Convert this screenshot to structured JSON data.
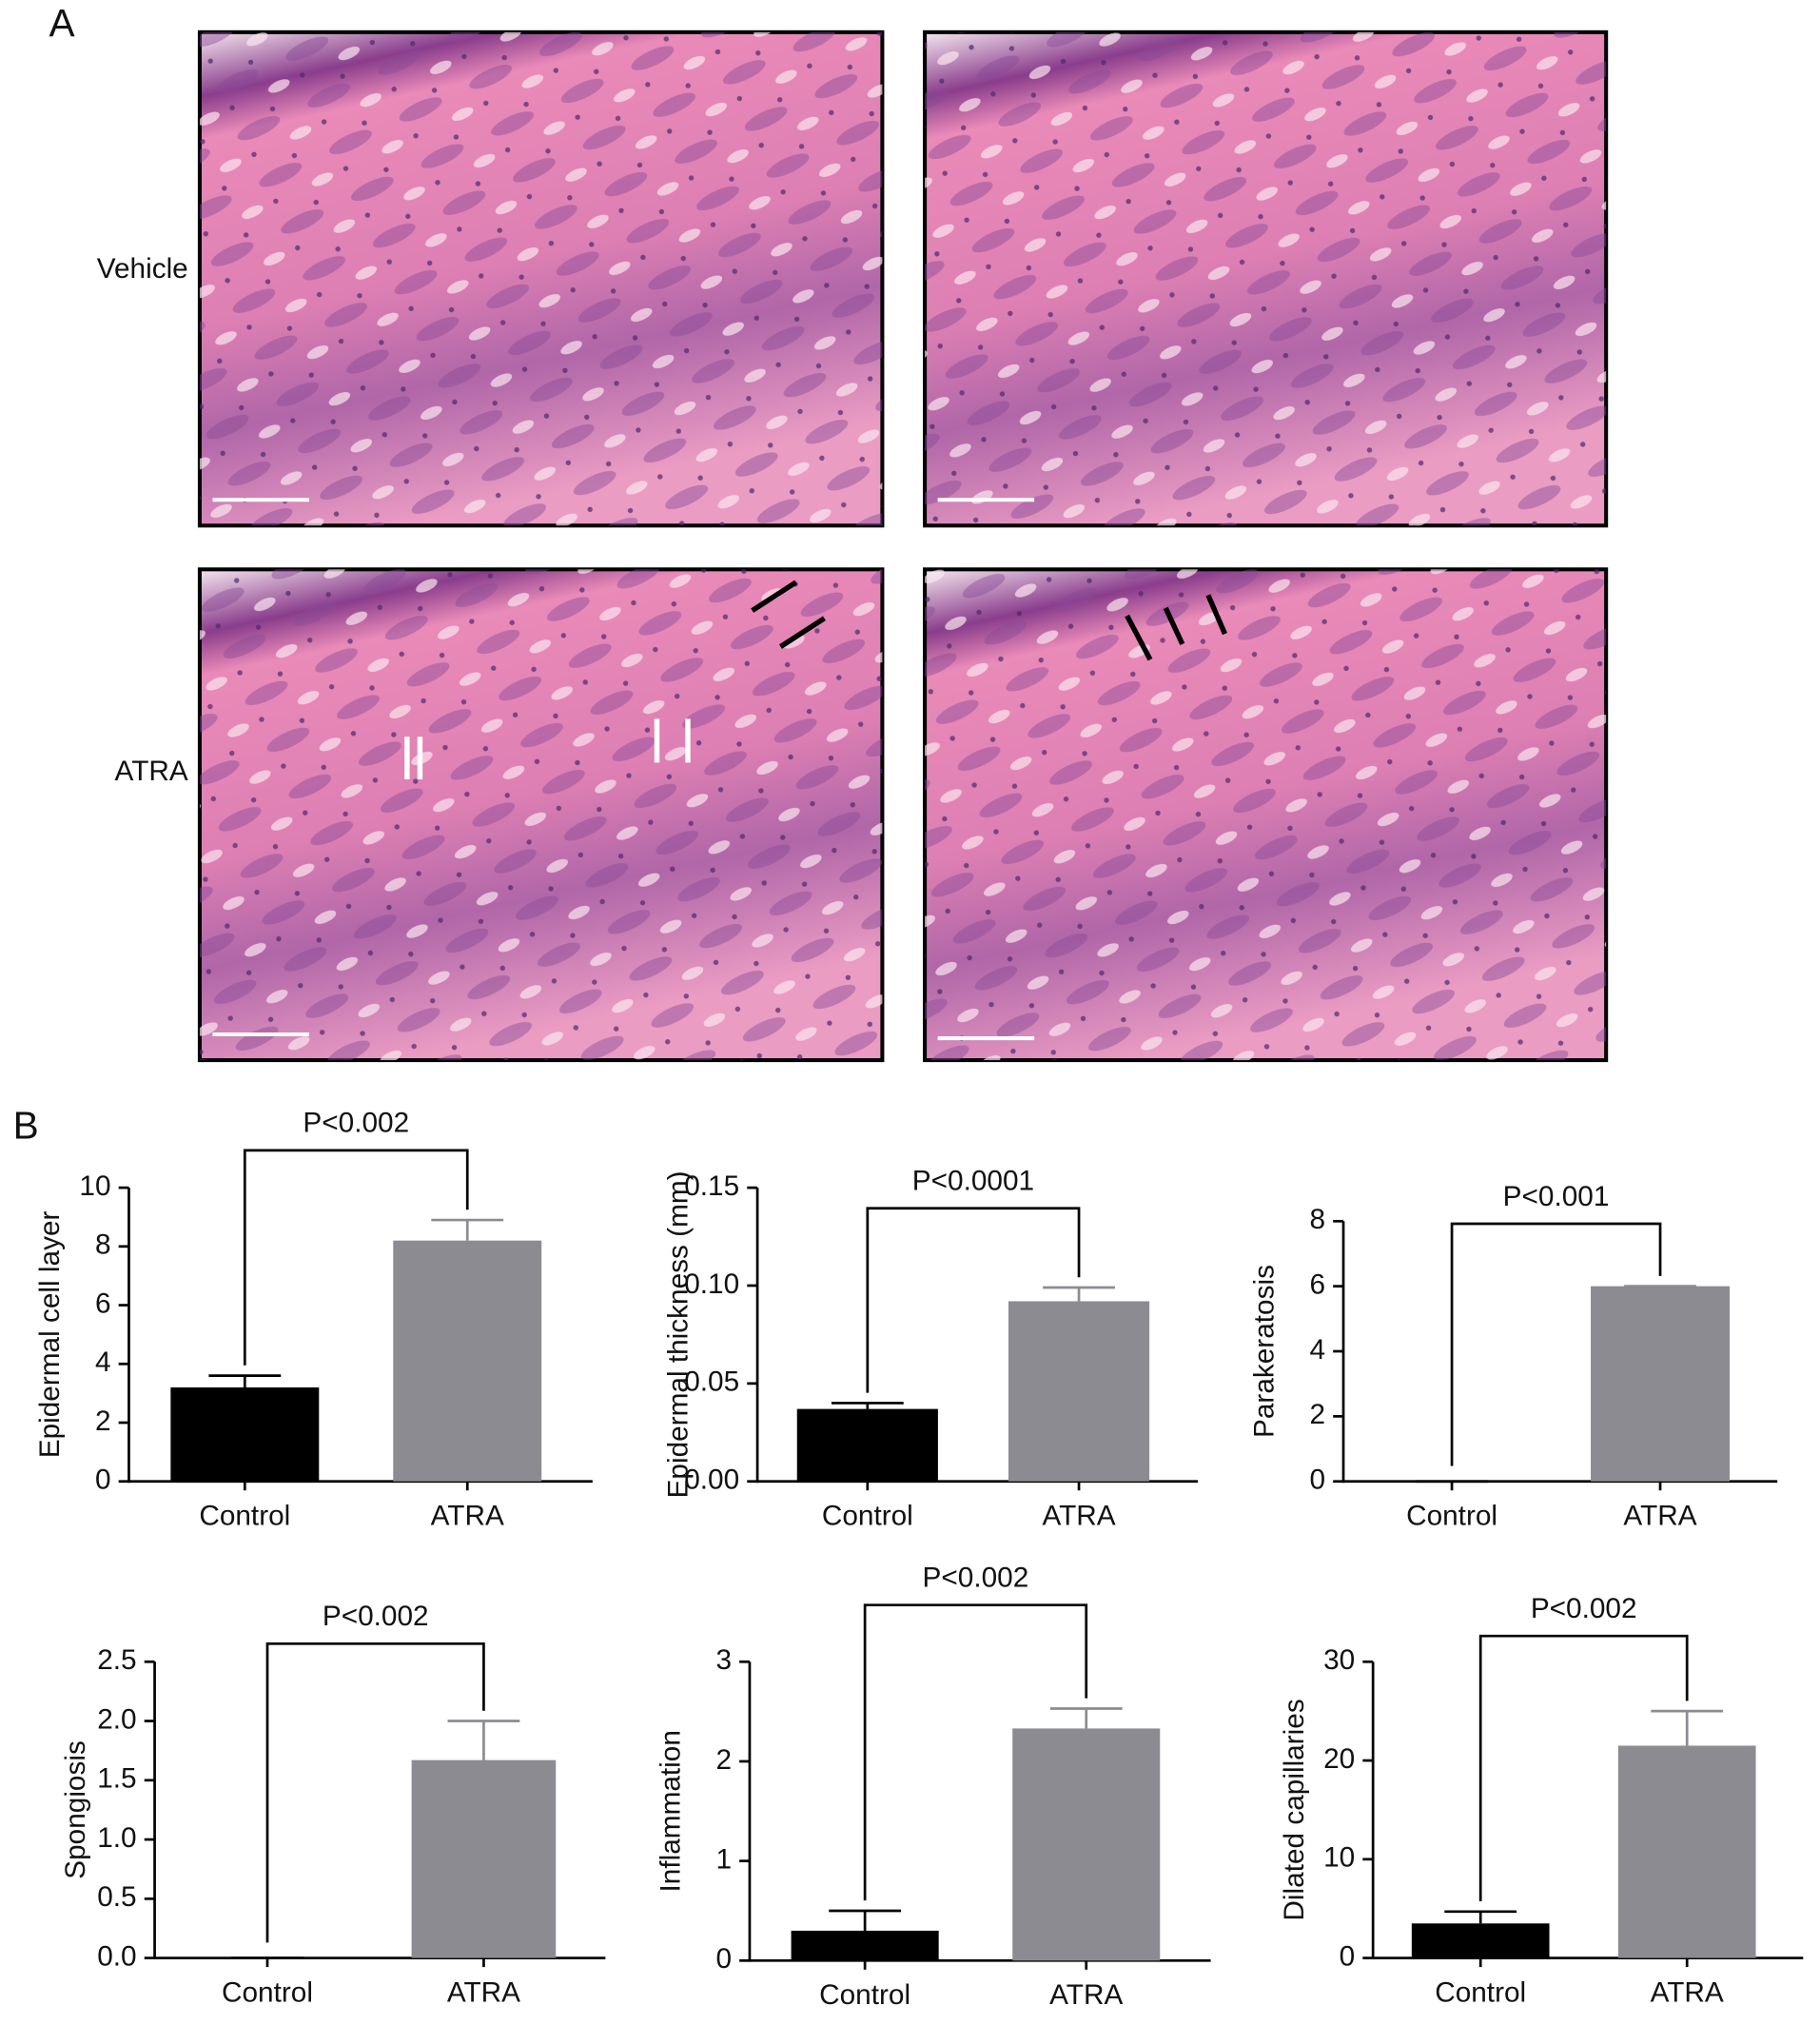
{
  "figure": {
    "panel_a_label": "A",
    "panel_b_label": "B",
    "row_labels": [
      "Vehicle",
      "ATRA"
    ]
  },
  "chart_data": [
    {
      "type": "bar",
      "ylabel": "Epidermal cell layer",
      "annotation": "P<0.002",
      "categories": [
        "Control",
        "ATRA"
      ],
      "values": [
        3.2,
        8.2
      ],
      "errors": [
        0.4,
        0.7
      ],
      "colors": [
        "#000000",
        "#8b8b91"
      ],
      "ylim": [
        0,
        10
      ],
      "yticks": [
        0,
        2,
        4,
        6,
        8,
        10
      ]
    },
    {
      "type": "bar",
      "ylabel": "Epidermal thickness (mm)",
      "annotation": "P<0.0001",
      "categories": [
        "Control",
        "ATRA"
      ],
      "values": [
        0.037,
        0.092
      ],
      "errors": [
        0.003,
        0.007
      ],
      "colors": [
        "#000000",
        "#8b8b91"
      ],
      "ylim": [
        0,
        0.15
      ],
      "yticks": [
        {
          "value": 0,
          "label": "0.00"
        },
        0.05,
        {
          "value": 0.1,
          "label": "0.10"
        },
        0.15
      ]
    },
    {
      "type": "bar",
      "ylabel": "Parakeratosis",
      "annotation": "P<0.001",
      "categories": [
        "Control",
        "ATRA"
      ],
      "values": [
        0,
        6
      ],
      "errors": [
        0,
        0
      ],
      "colors": [
        "#000000",
        "#8b8b91"
      ],
      "ylim": [
        0,
        8
      ],
      "yticks": [
        0,
        2,
        4,
        6,
        8
      ]
    },
    {
      "type": "bar",
      "ylabel": "Spongiosis",
      "annotation": "P<0.002",
      "categories": [
        "Control",
        "ATRA"
      ],
      "values": [
        0,
        1.67
      ],
      "errors": [
        0,
        0.33
      ],
      "colors": [
        "#000000",
        "#8b8b91"
      ],
      "ylim": [
        0,
        2.5
      ],
      "yticks": [
        {
          "value": 0,
          "label": "0.0"
        },
        0.5,
        {
          "value": 1,
          "label": "1.0"
        },
        1.5,
        {
          "value": 2,
          "label": "2.0"
        },
        2.5
      ]
    },
    {
      "type": "bar",
      "ylabel": "Inflammation",
      "annotation": "P<0.002",
      "categories": [
        "Control",
        "ATRA"
      ],
      "values": [
        0.3,
        2.33
      ],
      "errors": [
        0.2,
        0.2
      ],
      "colors": [
        "#000000",
        "#8b8b91"
      ],
      "ylim": [
        0,
        3
      ],
      "yticks": [
        0,
        1,
        2,
        3
      ]
    },
    {
      "type": "bar",
      "ylabel": "Dilated capillaries",
      "annotation": "P<0.002",
      "categories": [
        "Control",
        "ATRA"
      ],
      "values": [
        3.5,
        21.5
      ],
      "errors": [
        1.2,
        3.5
      ],
      "colors": [
        "#000000",
        "#8b8b91"
      ],
      "ylim": [
        0,
        30
      ],
      "yticks": [
        0,
        10,
        20,
        30
      ]
    }
  ]
}
